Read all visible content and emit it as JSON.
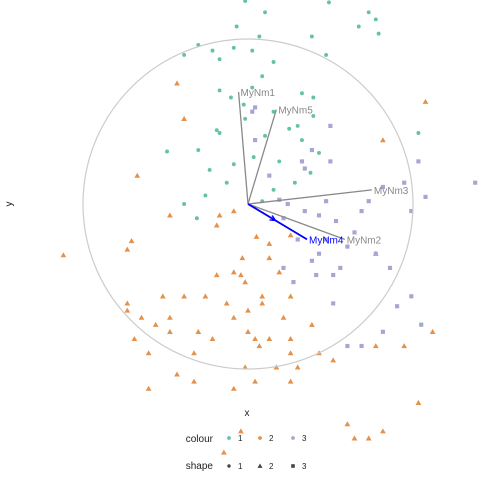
{
  "chart_data": {
    "type": "scatter",
    "title": "",
    "xlabel": "x",
    "ylabel": "y",
    "xlim": [
      -2.2,
      2.2
    ],
    "ylim": [
      -2.1,
      2.1
    ],
    "grid": false,
    "legend_placement": "bottom",
    "colors": {
      "1": "#66c2a5",
      "2": "#e6914a",
      "3": "#a6a6d2"
    },
    "circle": {
      "center": [
        0,
        0
      ],
      "radius": 1.0,
      "color": "#cccccc"
    },
    "vectors": [
      {
        "name": "MyNm1",
        "x": -0.08,
        "y": 0.95,
        "color": "#888888"
      },
      {
        "name": "MyNm5",
        "x": 0.24,
        "y": 0.8,
        "color": "#888888"
      },
      {
        "name": "MyNm3",
        "x": 1.05,
        "y": 0.12,
        "color": "#888888"
      },
      {
        "name": "MyNm2",
        "x": 0.82,
        "y": -0.3,
        "color": "#888888"
      },
      {
        "name": "MyNm4",
        "x": 0.5,
        "y": -0.3,
        "color": "#0000ff"
      }
    ],
    "legend": {
      "colour_title": "colour",
      "shape_title": "shape",
      "colour_items": [
        "1",
        "2",
        "3"
      ],
      "shape_items": [
        "1",
        "2",
        "3"
      ]
    },
    "series": [
      {
        "name": "1",
        "shape": "circle",
        "points": [
          [
            0.14,
            1.65
          ],
          [
            -0.02,
            1.43
          ],
          [
            0.57,
            1.42
          ],
          [
            0.12,
            1.35
          ],
          [
            -0.08,
            1.25
          ],
          [
            0.08,
            1.18
          ],
          [
            0.78,
            1.25
          ],
          [
            0.92,
            1.2
          ],
          [
            0.45,
            1.18
          ],
          [
            -0.35,
            1.12
          ],
          [
            -0.25,
            1.08
          ],
          [
            -0.1,
            1.1
          ],
          [
            0.18,
            1.0
          ],
          [
            -0.45,
            1.05
          ],
          [
            -0.2,
            1.02
          ],
          [
            0.1,
            0.9
          ],
          [
            0.03,
            0.82
          ],
          [
            0.38,
            0.78
          ],
          [
            0.46,
            0.75
          ],
          [
            0.46,
            0.62
          ],
          [
            0.18,
            0.65
          ],
          [
            0.35,
            0.55
          ],
          [
            -0.03,
            0.7
          ],
          [
            -0.12,
            0.75
          ],
          [
            -0.02,
            0.6
          ],
          [
            0.29,
            0.53
          ],
          [
            0.38,
            0.45
          ],
          [
            -0.2,
            0.5
          ],
          [
            -0.22,
            0.52
          ],
          [
            0.12,
            0.48
          ],
          [
            -0.35,
            0.38
          ],
          [
            0.5,
            0.36
          ],
          [
            0.04,
            0.33
          ],
          [
            0.22,
            0.3
          ],
          [
            0.44,
            0.22
          ],
          [
            0.33,
            0.15
          ],
          [
            0.18,
            0.1
          ],
          [
            -0.1,
            0.28
          ],
          [
            -0.27,
            0.24
          ],
          [
            -0.3,
            0.06
          ],
          [
            -0.15,
            0.15
          ],
          [
            0.1,
            0.02
          ],
          [
            -0.45,
            0.0
          ],
          [
            0.9,
            1.3
          ],
          [
            1.2,
            0.5
          ],
          [
            -0.57,
            0.37
          ],
          [
            0.55,
            1.05
          ],
          [
            0.03,
            1.08
          ],
          [
            -0.36,
            -0.1
          ],
          [
            -0.2,
            0.8
          ],
          [
            0.85,
            1.35
          ]
        ]
      },
      {
        "name": "2",
        "shape": "triangle",
        "points": [
          [
            -0.5,
            0.85
          ],
          [
            -0.45,
            0.6
          ],
          [
            -0.78,
            0.2
          ],
          [
            -0.55,
            -0.08
          ],
          [
            -0.2,
            -0.08
          ],
          [
            -0.22,
            -0.15
          ],
          [
            -0.1,
            -0.05
          ],
          [
            -1.3,
            -0.36
          ],
          [
            -0.85,
            -0.32
          ],
          [
            -0.82,
            -0.26
          ],
          [
            0.06,
            -0.23
          ],
          [
            0.15,
            -0.28
          ],
          [
            0.3,
            -0.22
          ],
          [
            0.15,
            -0.38
          ],
          [
            -0.04,
            -0.38
          ],
          [
            -0.1,
            -0.48
          ],
          [
            -0.05,
            -0.5
          ],
          [
            -0.22,
            -0.5
          ],
          [
            -0.02,
            -0.55
          ],
          [
            0.3,
            -0.65
          ],
          [
            -0.45,
            -0.65
          ],
          [
            -0.6,
            -0.65
          ],
          [
            -0.3,
            -0.65
          ],
          [
            0.1,
            -0.65
          ],
          [
            0.25,
            -0.8
          ],
          [
            0.0,
            -0.75
          ],
          [
            -0.1,
            -0.8
          ],
          [
            0.0,
            -0.9
          ],
          [
            0.05,
            -0.95
          ],
          [
            0.15,
            -0.95
          ],
          [
            0.3,
            -0.95
          ],
          [
            -0.35,
            -0.9
          ],
          [
            -0.55,
            -0.9
          ],
          [
            -0.55,
            -0.8
          ],
          [
            -0.75,
            -0.8
          ],
          [
            -0.85,
            -0.75
          ],
          [
            -0.8,
            -0.95
          ],
          [
            -0.38,
            -1.05
          ],
          [
            0.08,
            -1.0
          ],
          [
            0.3,
            -1.05
          ],
          [
            0.3,
            -1.25
          ],
          [
            0.2,
            -1.15
          ],
          [
            -0.02,
            -1.15
          ],
          [
            -0.1,
            -1.3
          ],
          [
            -0.38,
            -1.25
          ],
          [
            -0.5,
            -1.2
          ],
          [
            -0.7,
            -1.3
          ],
          [
            -0.7,
            -1.05
          ],
          [
            -0.85,
            -0.7
          ],
          [
            0.5,
            -1.05
          ],
          [
            0.9,
            -0.35
          ],
          [
            1.3,
            -0.9
          ],
          [
            1.2,
            -1.4
          ],
          [
            0.95,
            -1.6
          ],
          [
            0.75,
            -1.65
          ],
          [
            1.1,
            -1.0
          ],
          [
            1.75,
            -0.95
          ],
          [
            2.0,
            -0.58
          ],
          [
            -1.9,
            -0.45
          ],
          [
            -0.17,
            -1.75
          ],
          [
            -0.05,
            -1.6
          ],
          [
            0.85,
            -1.65
          ],
          [
            0.7,
            -1.55
          ],
          [
            0.22,
            -0.48
          ],
          [
            0.45,
            -0.85
          ],
          [
            0.1,
            -0.7
          ],
          [
            -0.65,
            -0.85
          ],
          [
            -0.25,
            -0.95
          ],
          [
            0.35,
            -1.15
          ],
          [
            0.6,
            -1.1
          ],
          [
            0.95,
            0.45
          ],
          [
            1.25,
            0.72
          ],
          [
            0.9,
            -1.0
          ],
          [
            -0.15,
            -0.7
          ],
          [
            0.05,
            -1.25
          ]
        ]
      },
      {
        "name": "3",
        "shape": "square",
        "points": [
          [
            0.03,
            0.65
          ],
          [
            0.05,
            0.68
          ],
          [
            0.58,
            0.55
          ],
          [
            0.45,
            0.38
          ],
          [
            0.58,
            0.3
          ],
          [
            0.4,
            0.25
          ],
          [
            0.05,
            0.45
          ],
          [
            0.15,
            0.2
          ],
          [
            0.55,
            0.02
          ],
          [
            0.95,
            0.12
          ],
          [
            1.1,
            0.15
          ],
          [
            1.2,
            0.3
          ],
          [
            1.25,
            0.05
          ],
          [
            0.22,
            0.03
          ],
          [
            0.28,
            0.0
          ],
          [
            0.4,
            -0.05
          ],
          [
            0.5,
            -0.08
          ],
          [
            0.62,
            -0.12
          ],
          [
            0.75,
            -0.2
          ],
          [
            0.7,
            -0.3
          ],
          [
            0.5,
            -0.35
          ],
          [
            0.45,
            -0.4
          ],
          [
            0.48,
            -0.5
          ],
          [
            0.6,
            -0.5
          ],
          [
            0.65,
            -0.45
          ],
          [
            0.32,
            -0.55
          ],
          [
            0.9,
            -0.35
          ],
          [
            1.0,
            -0.45
          ],
          [
            1.15,
            -0.05
          ],
          [
            1.15,
            -0.65
          ],
          [
            1.05,
            -0.72
          ],
          [
            0.95,
            -0.9
          ],
          [
            1.22,
            -0.85
          ],
          [
            0.8,
            -1.0
          ],
          [
            0.7,
            -1.0
          ],
          [
            1.6,
            0.15
          ],
          [
            1.8,
            -1.05
          ],
          [
            0.25,
            -0.1
          ],
          [
            0.35,
            -0.25
          ],
          [
            0.55,
            -0.25
          ],
          [
            0.8,
            -0.05
          ],
          [
            0.85,
            0.02
          ],
          [
            0.38,
            0.3
          ],
          [
            0.25,
            -0.45
          ],
          [
            0.6,
            -0.7
          ]
        ]
      }
    ]
  }
}
